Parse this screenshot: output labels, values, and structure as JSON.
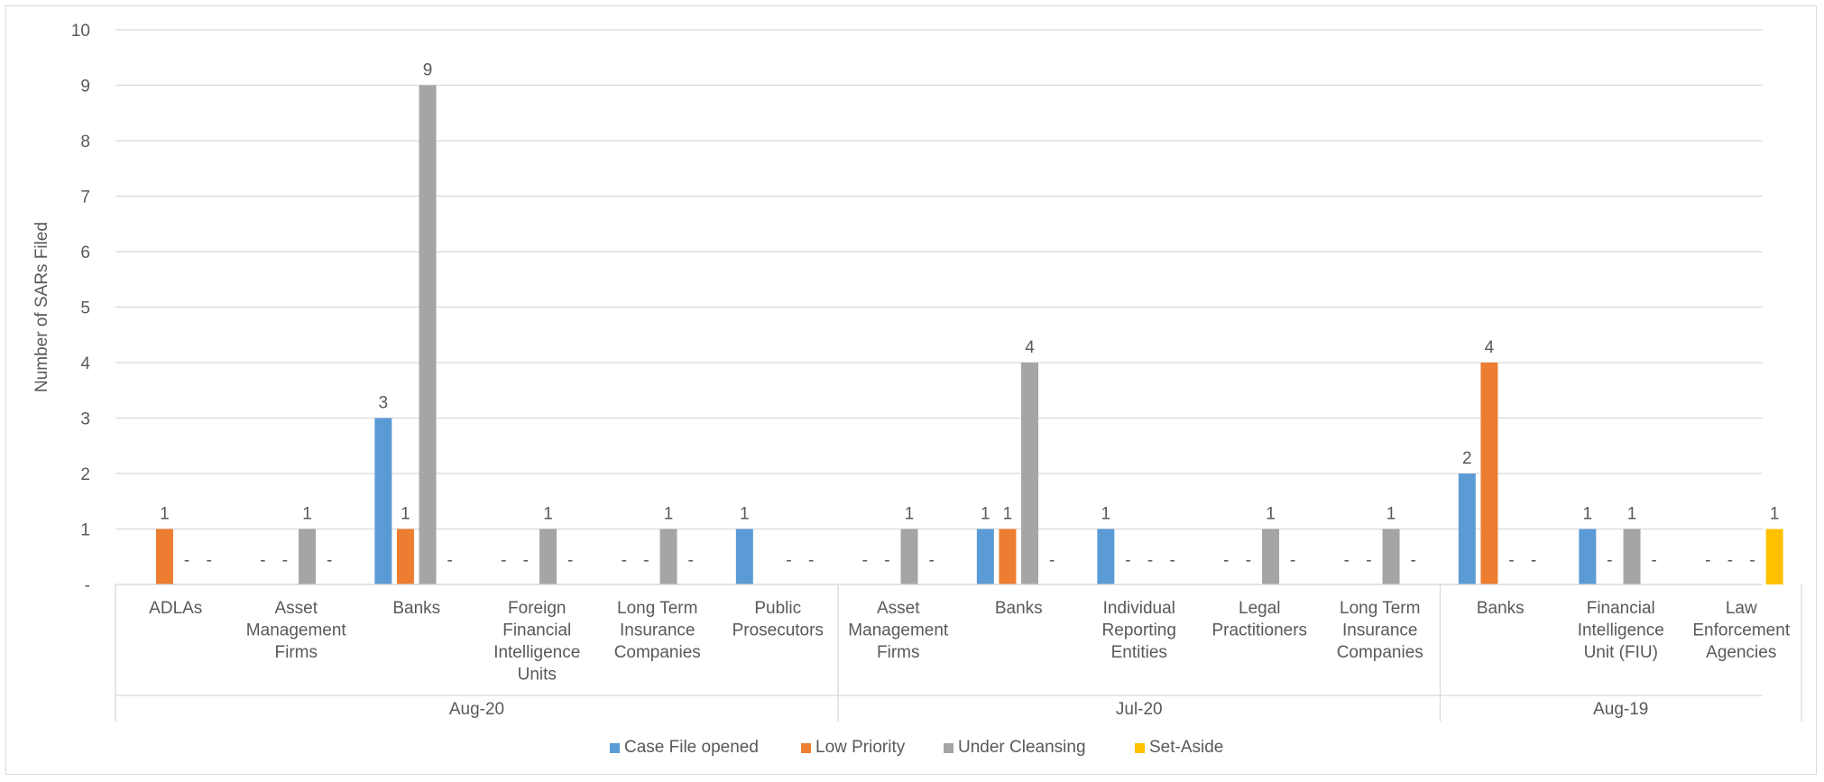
{
  "chart_data": {
    "type": "bar",
    "ylabel": "Number of SARs Filed",
    "xlabel": "",
    "ylim": [
      0,
      10
    ],
    "y_ticks": [
      {
        "value": 0,
        "label": "-"
      },
      {
        "value": 1,
        "label": "1"
      },
      {
        "value": 2,
        "label": "2"
      },
      {
        "value": 3,
        "label": "3"
      },
      {
        "value": 4,
        "label": "4"
      },
      {
        "value": 5,
        "label": "5"
      },
      {
        "value": 6,
        "label": "6"
      },
      {
        "value": 7,
        "label": "7"
      },
      {
        "value": 8,
        "label": "8"
      },
      {
        "value": 9,
        "label": "9"
      },
      {
        "value": 10,
        "label": "10"
      }
    ],
    "grid": true,
    "legend_position": "bottom",
    "zero_label": "-",
    "groups": [
      {
        "label": "Aug-20",
        "categories": [
          {
            "label": "ADLAs",
            "values": [
              null,
              1,
              0,
              0
            ]
          },
          {
            "label": "Asset Management Firms",
            "values": [
              0,
              0,
              1,
              0
            ]
          },
          {
            "label": "Banks",
            "values": [
              3,
              1,
              9,
              0
            ]
          },
          {
            "label": "Foreign Financial Intelligence Units",
            "values": [
              0,
              0,
              1,
              0
            ]
          },
          {
            "label": "Long Term Insurance Companies",
            "values": [
              0,
              0,
              1,
              0
            ]
          },
          {
            "label": "Public Prosecutors",
            "values": [
              1,
              null,
              0,
              0
            ]
          }
        ]
      },
      {
        "label": "Jul-20",
        "categories": [
          {
            "label": "Asset Management Firms",
            "values": [
              0,
              0,
              1,
              0
            ]
          },
          {
            "label": "Banks",
            "values": [
              1,
              1,
              4,
              0
            ]
          },
          {
            "label": "Individual Reporting Entities",
            "values": [
              1,
              0,
              0,
              0
            ]
          },
          {
            "label": "Legal Practitioners",
            "values": [
              0,
              0,
              1,
              0
            ]
          },
          {
            "label": "Long Term Insurance Companies",
            "values": [
              0,
              0,
              1,
              0
            ]
          }
        ]
      },
      {
        "label": "Aug-19",
        "categories": [
          {
            "label": "Banks",
            "values": [
              2,
              4,
              0,
              0
            ]
          },
          {
            "label": "Financial Intelligence Unit (FIU)",
            "values": [
              1,
              0,
              1,
              0
            ]
          },
          {
            "label": "Law Enforcement Agencies",
            "values": [
              0,
              0,
              0,
              1
            ]
          }
        ]
      }
    ],
    "series": [
      {
        "name": "Case File opened",
        "color": "#5b9bd5"
      },
      {
        "name": "Low Priority",
        "color": "#ed7d31"
      },
      {
        "name": "Under Cleansing",
        "color": "#a5a5a5"
      },
      {
        "name": "Set-Aside",
        "color": "#ffc000"
      }
    ]
  }
}
